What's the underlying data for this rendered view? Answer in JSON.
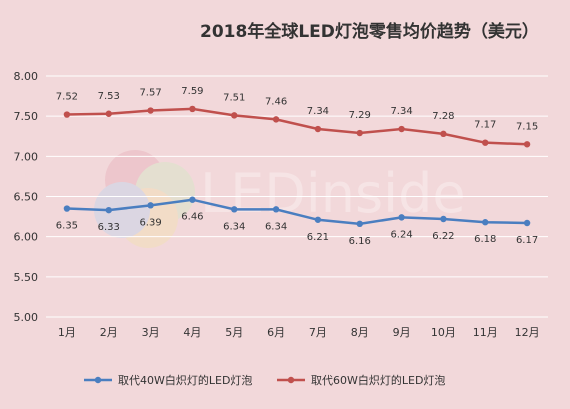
{
  "chart_data": {
    "type": "line",
    "title": "2018年全球LED灯泡零售均价趋势（美元）",
    "categories": [
      "1月",
      "2月",
      "3月",
      "4月",
      "5月",
      "6月",
      "7月",
      "8月",
      "9月",
      "10月",
      "11月",
      "12月"
    ],
    "series": [
      {
        "name": "取代40W白炽灯的LED灯泡",
        "color": "#4a7ec0",
        "values": [
          6.35,
          6.33,
          6.39,
          6.46,
          6.34,
          6.34,
          6.21,
          6.16,
          6.24,
          6.22,
          6.18,
          6.17
        ]
      },
      {
        "name": "取代60W白炽灯的LED灯泡",
        "color": "#c0504d",
        "values": [
          7.52,
          7.53,
          7.57,
          7.59,
          7.51,
          7.46,
          7.34,
          7.29,
          7.34,
          7.28,
          7.17,
          7.15
        ]
      }
    ],
    "ylim": [
      5.0,
      8.0
    ],
    "yticks": [
      "5.00",
      "5.50",
      "6.00",
      "6.50",
      "7.00",
      "7.50",
      "8.00"
    ],
    "grid": true,
    "legend": "bottom",
    "watermark": "LEDinside"
  }
}
